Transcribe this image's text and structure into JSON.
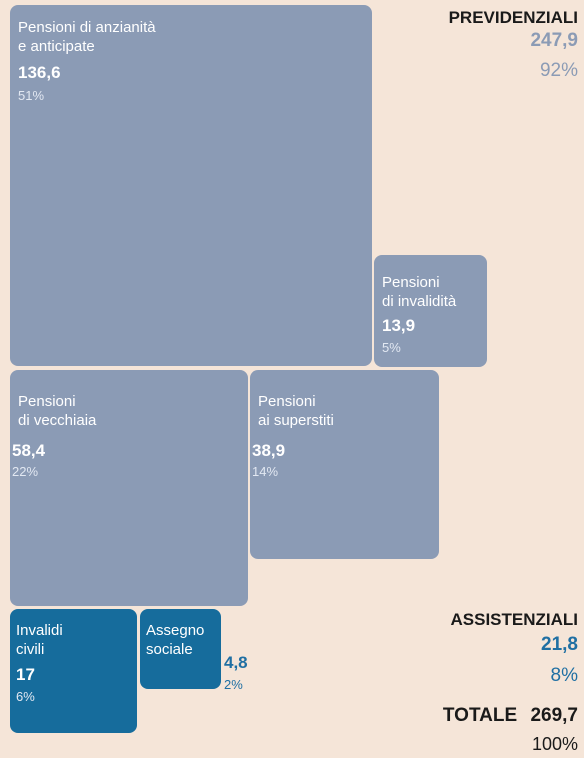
{
  "chart_data": {
    "type": "treemap",
    "groups": [
      {
        "name": "PREVIDENZIALI",
        "total": "247,9",
        "share": "92%",
        "color": "#8b9bb5",
        "items": [
          {
            "label_line1": "Pensioni di anzianità",
            "label_line2": "e anticipate",
            "value": "136,6",
            "share": "51%"
          },
          {
            "label_line1": "Pensioni",
            "label_line2": "di invalidità",
            "value": "13,9",
            "share": "5%"
          },
          {
            "label_line1": "Pensioni",
            "label_line2": "di vecchiaia",
            "value": "58,4",
            "share": "22%"
          },
          {
            "label_line1": "Pensioni",
            "label_line2": "ai superstiti",
            "value": "38,9",
            "share": "14%"
          }
        ]
      },
      {
        "name": "ASSISTENZIALI",
        "total": "21,8",
        "share": "8%",
        "color": "#166c9c",
        "items": [
          {
            "label_line1": "Invalidi",
            "label_line2": "civili",
            "value": "17",
            "share": "6%"
          },
          {
            "label_line1": "Assegno",
            "label_line2": "sociale",
            "value": "4,8",
            "share": "2%"
          }
        ]
      }
    ],
    "total": {
      "label": "TOTALE",
      "value": "269,7",
      "share": "100%"
    }
  }
}
